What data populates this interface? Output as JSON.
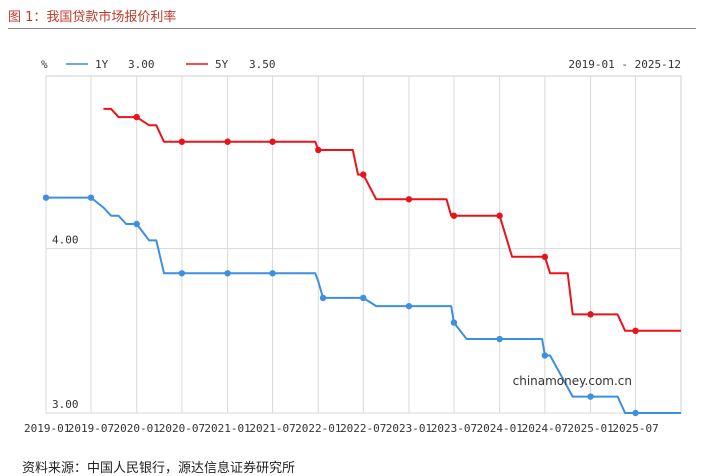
{
  "figure": {
    "title": "图 1：我国贷款市场报价利率",
    "source": "资料来源：中国人民银行，源达信息证券研究所"
  },
  "chart_data": {
    "type": "line",
    "unit_label": "%",
    "date_range_label": "2019-01 - 2025-12",
    "watermark": "chinamoney.com.cn",
    "x_range": [
      "2019-01-01",
      "2025-12-31"
    ],
    "ylim": [
      3.0,
      5.05
    ],
    "y_ticks": [
      {
        "value": 3.0,
        "label": "3.00"
      },
      {
        "value": 4.0,
        "label": "4.00"
      }
    ],
    "x_ticks": [
      "2019-01",
      "2019-07",
      "2020-01",
      "2020-07",
      "2021-01",
      "2021-07",
      "2022-01",
      "2022-07",
      "2023-01",
      "2023-07",
      "2024-01",
      "2024-07",
      "2025-01",
      "2025-07"
    ],
    "series": [
      {
        "name": "1Y",
        "legend_value": "3.00",
        "color": "#3d8fe0",
        "points": [
          [
            "2019-01-01",
            4.31
          ],
          [
            "2019-07-01",
            4.31
          ],
          [
            "2019-08-20",
            4.25
          ],
          [
            "2019-09-20",
            4.2
          ],
          [
            "2019-10-20",
            4.2
          ],
          [
            "2019-11-20",
            4.15
          ],
          [
            "2020-01-01",
            4.15
          ],
          [
            "2020-02-20",
            4.05
          ],
          [
            "2020-03-20",
            4.05
          ],
          [
            "2020-04-20",
            3.85
          ],
          [
            "2020-07-01",
            3.85
          ],
          [
            "2021-01-01",
            3.85
          ],
          [
            "2021-07-01",
            3.85
          ],
          [
            "2021-12-20",
            3.85
          ],
          [
            "2022-01-01",
            3.8
          ],
          [
            "2022-01-20",
            3.7
          ],
          [
            "2022-07-01",
            3.7
          ],
          [
            "2022-08-22",
            3.65
          ],
          [
            "2023-01-01",
            3.65
          ],
          [
            "2023-06-20",
            3.65
          ],
          [
            "2023-07-01",
            3.55
          ],
          [
            "2023-08-21",
            3.45
          ],
          [
            "2024-01-01",
            3.45
          ],
          [
            "2024-06-20",
            3.45
          ],
          [
            "2024-07-01",
            3.35
          ],
          [
            "2024-07-22",
            3.35
          ],
          [
            "2024-10-21",
            3.1
          ],
          [
            "2025-01-01",
            3.1
          ],
          [
            "2025-04-20",
            3.1
          ],
          [
            "2025-05-20",
            3.0
          ],
          [
            "2025-07-01",
            3.0
          ],
          [
            "2025-12-31",
            3.0
          ]
        ],
        "markers": [
          "2019-01-01",
          "2019-07-01",
          "2020-01-01",
          "2020-07-01",
          "2021-01-01",
          "2021-07-01",
          "2022-01-20",
          "2022-07-01",
          "2023-01-01",
          "2023-07-01",
          "2024-01-01",
          "2024-07-01",
          "2025-01-01",
          "2025-07-01"
        ]
      },
      {
        "name": "5Y",
        "legend_value": "3.50",
        "color": "#e8141b",
        "points": [
          [
            "2019-08-20",
            4.85
          ],
          [
            "2019-09-20",
            4.85
          ],
          [
            "2019-10-20",
            4.8
          ],
          [
            "2020-01-01",
            4.8
          ],
          [
            "2020-02-20",
            4.75
          ],
          [
            "2020-03-20",
            4.75
          ],
          [
            "2020-04-20",
            4.65
          ],
          [
            "2020-07-01",
            4.65
          ],
          [
            "2021-01-01",
            4.65
          ],
          [
            "2021-07-01",
            4.65
          ],
          [
            "2021-12-20",
            4.65
          ],
          [
            "2022-01-01",
            4.6
          ],
          [
            "2022-05-20",
            4.6
          ],
          [
            "2022-06-10",
            4.45
          ],
          [
            "2022-07-01",
            4.45
          ],
          [
            "2022-08-22",
            4.3
          ],
          [
            "2023-01-01",
            4.3
          ],
          [
            "2023-06-01",
            4.3
          ],
          [
            "2023-06-20",
            4.2
          ],
          [
            "2023-07-01",
            4.2
          ],
          [
            "2024-01-01",
            4.2
          ],
          [
            "2024-02-20",
            3.95
          ],
          [
            "2024-07-01",
            3.95
          ],
          [
            "2024-07-22",
            3.85
          ],
          [
            "2024-10-01",
            3.85
          ],
          [
            "2024-10-21",
            3.6
          ],
          [
            "2025-01-01",
            3.6
          ],
          [
            "2025-04-20",
            3.6
          ],
          [
            "2025-05-20",
            3.5
          ],
          [
            "2025-07-01",
            3.5
          ],
          [
            "2025-12-31",
            3.5
          ]
        ],
        "markers": [
          "2020-01-01",
          "2020-07-01",
          "2021-01-01",
          "2021-07-01",
          "2022-01-01",
          "2022-07-01",
          "2023-01-01",
          "2023-07-01",
          "2024-01-01",
          "2024-07-01",
          "2025-01-01",
          "2025-07-01"
        ]
      }
    ]
  }
}
